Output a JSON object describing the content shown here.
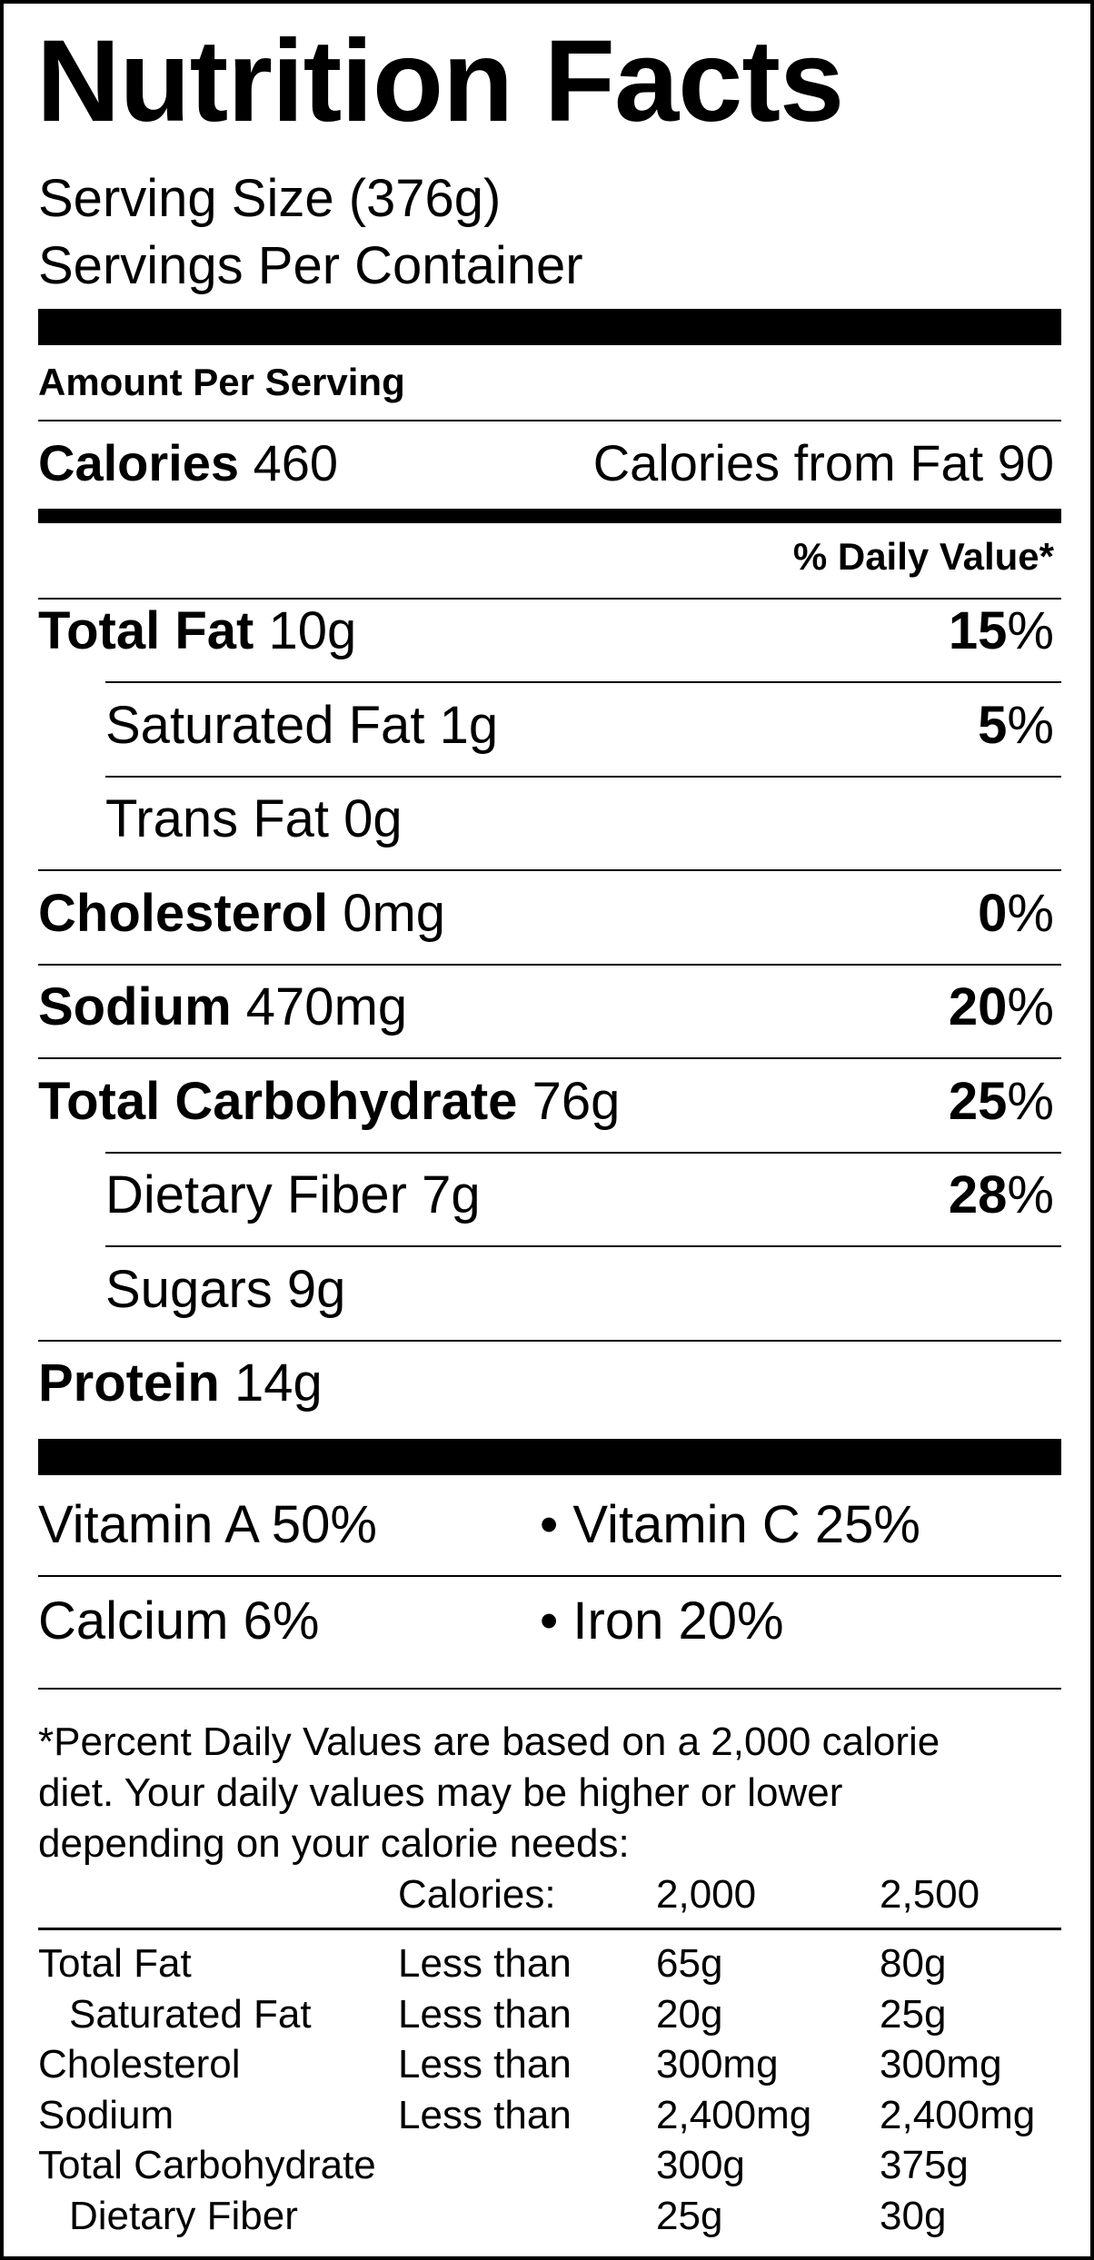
{
  "title": "Nutrition Facts",
  "serving_size": "Serving Size (376g)",
  "servings_per_container": "Servings Per Container",
  "amount_per_serving": "Amount Per Serving",
  "calories": {
    "label": "Calories",
    "value": "460"
  },
  "calories_from_fat": "Calories from Fat 90",
  "daily_value_header": "% Daily Value*",
  "nutrients": [
    {
      "label": "Total Fat",
      "amount": "10g",
      "pct": "15",
      "indent": false
    },
    {
      "label": "Saturated Fat",
      "amount": "1g",
      "pct": "5",
      "indent": true
    },
    {
      "label": "Trans Fat",
      "amount": "0g",
      "pct": "",
      "indent": true
    },
    {
      "label": "Cholesterol",
      "amount": "0mg",
      "pct": "0",
      "indent": false
    },
    {
      "label": "Sodium",
      "amount": "470mg",
      "pct": "20",
      "indent": false
    },
    {
      "label": "Total Carbohydrate",
      "amount": "76g",
      "pct": "25",
      "indent": false
    },
    {
      "label": "Dietary Fiber",
      "amount": "7g",
      "pct": "28",
      "indent": true
    },
    {
      "label": "Sugars",
      "amount": "9g",
      "pct": "",
      "indent": true
    },
    {
      "label": "Protein",
      "amount": "14g",
      "pct": "",
      "indent": false
    }
  ],
  "vitamins": {
    "vitamin_a": "Vitamin A 50%",
    "vitamin_c": "• Vitamin C 25%",
    "calcium": "Calcium 6%",
    "iron": "• Iron 20%"
  },
  "footnote": {
    "line1": "*Percent Daily Values are based on a 2,000 calorie",
    "line2": "diet. Your daily values may be higher or lower",
    "line3": "depending on your calorie needs:"
  },
  "reference_table": {
    "header": {
      "label": "Calories:",
      "col1": "2,000",
      "col2": "2,500"
    },
    "rows": [
      {
        "nutrient": "Total Fat",
        "limit": "Less than",
        "v1": "65g",
        "v2": "80g",
        "indent": false
      },
      {
        "nutrient": "Saturated Fat",
        "limit": "Less than",
        "v1": "20g",
        "v2": "25g",
        "indent": true
      },
      {
        "nutrient": "Cholesterol",
        "limit": "Less than",
        "v1": "300mg",
        "v2": "300mg",
        "indent": false
      },
      {
        "nutrient": "Sodium",
        "limit": "Less than",
        "v1": "2,400mg",
        "v2": "2,400mg",
        "indent": false
      },
      {
        "nutrient": "Total Carbohydrate",
        "limit": "",
        "v1": "300g",
        "v2": "375g",
        "indent": false
      },
      {
        "nutrient": "Dietary Fiber",
        "limit": "",
        "v1": "25g",
        "v2": "30g",
        "indent": true
      }
    ]
  }
}
